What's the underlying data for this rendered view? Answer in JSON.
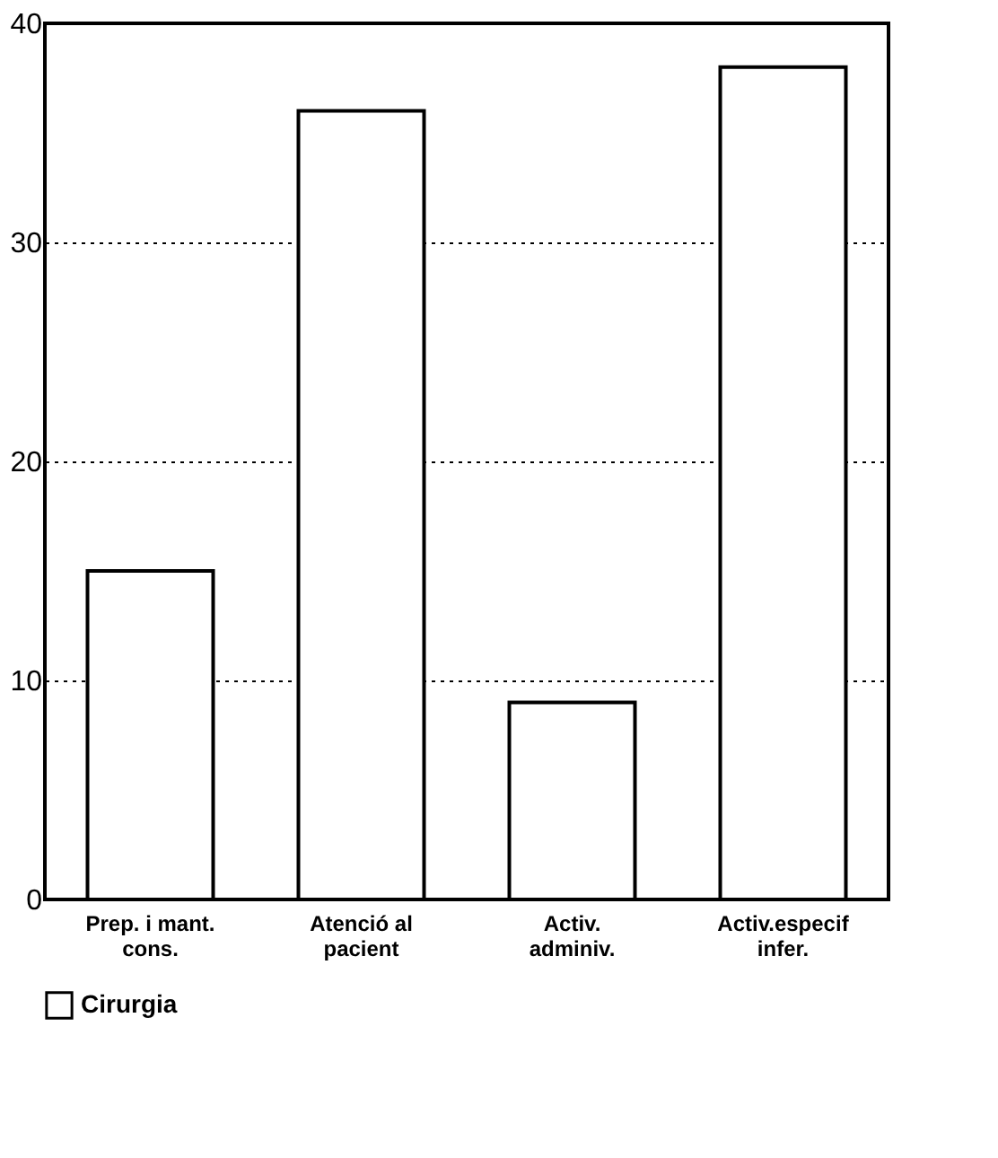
{
  "chart_data": {
    "type": "bar",
    "categories": [
      "Prep. i mant.\ncons.",
      "Atenció al\npacient",
      "Activ.\nadminiv.",
      "Activ.especif\ninfer."
    ],
    "series": [
      {
        "name": "Cirurgia",
        "color": "#ffffff",
        "values": [
          15,
          36,
          9,
          38
        ]
      }
    ],
    "ylim": [
      0,
      40
    ],
    "yticks": [
      0,
      10,
      20,
      30,
      40
    ],
    "grid": "y",
    "legend": "bottom"
  }
}
